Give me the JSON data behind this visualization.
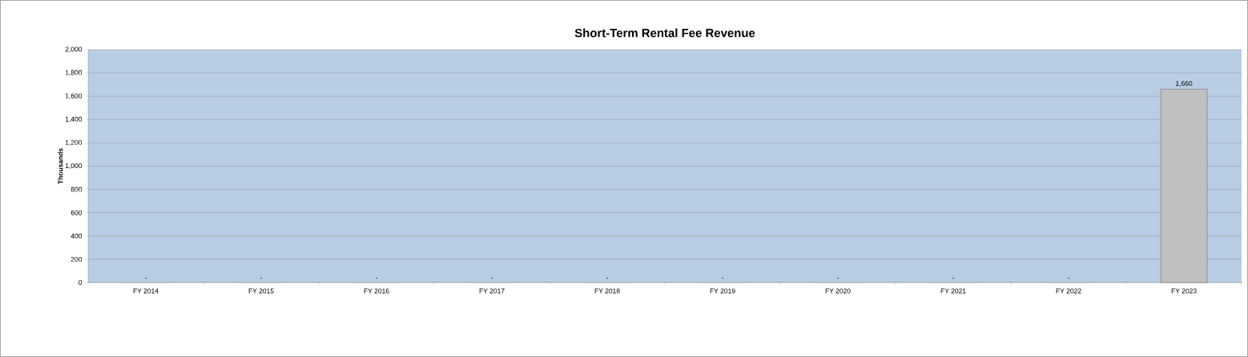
{
  "chart_data": {
    "type": "bar",
    "title": "Short-Term Rental Fee Revenue",
    "ylabel": "Thousands",
    "categories": [
      "FY 2014",
      "FY 2015",
      "FY 2016",
      "FY 2017",
      "FY 2018",
      "FY 2019",
      "FY 2020",
      "FY 2021",
      "FY 2022",
      "FY 2023"
    ],
    "values": [
      0,
      0,
      0,
      0,
      0,
      0,
      0,
      0,
      0,
      1660
    ],
    "value_labels": [
      "-",
      "-",
      "-",
      "-",
      "-",
      "-",
      "-",
      "-",
      "-",
      "1,660"
    ],
    "color": "#c0c0c0",
    "ylim": [
      0,
      2000
    ],
    "yticks": [
      0,
      200,
      400,
      600,
      800,
      {
        "value": 1000,
        "label": "1,000"
      },
      {
        "value": 1200,
        "label": "1,200"
      },
      {
        "value": 1400,
        "label": "1,400"
      },
      {
        "value": 1600,
        "label": "1,600"
      },
      {
        "value": 1800,
        "label": "1,800"
      },
      {
        "value": 2000,
        "label": "2,000"
      }
    ],
    "grid": "y"
  }
}
